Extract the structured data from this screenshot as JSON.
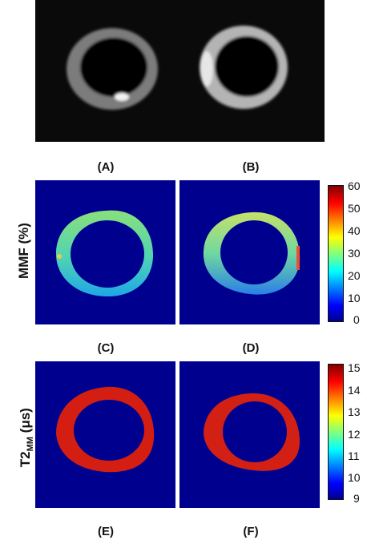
{
  "panels": {
    "A": "(A)",
    "B": "(B)",
    "C": "(C)",
    "D": "(D)",
    "E": "(E)",
    "F": "(F)"
  },
  "row2": {
    "ylabel": "MMF (%)",
    "colorbar_ticks": [
      "60",
      "50",
      "40",
      "30",
      "20",
      "10",
      "0"
    ]
  },
  "row3": {
    "ylabel_main": "T2",
    "ylabel_sub": "MM",
    "ylabel_unit": " (μs)",
    "colorbar_ticks": [
      "15",
      "14",
      "13",
      "12",
      "11",
      "10",
      "9"
    ]
  },
  "colors": {
    "map_background": "#00008f",
    "mri_background": "#0a0a0a"
  }
}
